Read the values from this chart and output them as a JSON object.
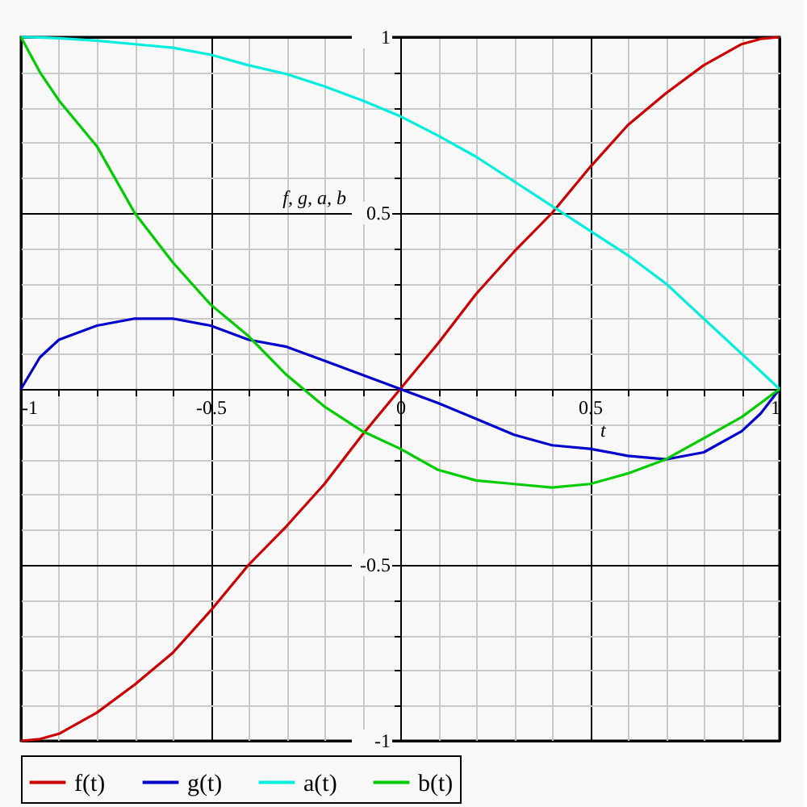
{
  "chart_data": {
    "type": "line",
    "xlabel": "t",
    "ylabel": "f, g, a, b",
    "x": [
      -1,
      -0.95,
      -0.9,
      -0.8,
      -0.7,
      -0.6,
      -0.5,
      -0.4,
      -0.3,
      -0.2,
      -0.1,
      0,
      0.1,
      0.2,
      0.3,
      0.4,
      0.5,
      0.6,
      0.7,
      0.8,
      0.9,
      0.95,
      1
    ],
    "series": [
      {
        "name": "f(t)",
        "color": "#cc0000",
        "values": [
          -1,
          -0.995,
          -0.98,
          -0.92,
          -0.84,
          -0.75,
          -0.63,
          -0.5,
          -0.39,
          -0.27,
          -0.13,
          0,
          0.13,
          0.27,
          0.39,
          0.5,
          0.63,
          0.75,
          0.84,
          0.92,
          0.98,
          0.995,
          1
        ]
      },
      {
        "name": "g(t)",
        "color": "#0000cc",
        "values": [
          0,
          0.09,
          0.14,
          0.18,
          0.2,
          0.2,
          0.18,
          0.14,
          0.12,
          0.08,
          0.04,
          0,
          -0.04,
          -0.085,
          -0.13,
          -0.16,
          -0.17,
          -0.19,
          -0.2,
          -0.18,
          -0.12,
          -0.07,
          0
        ]
      },
      {
        "name": "a(t)",
        "color": "#00eedd",
        "values": [
          1,
          0.999,
          0.997,
          0.99,
          0.98,
          0.97,
          0.95,
          0.92,
          0.895,
          0.86,
          0.82,
          0.775,
          0.72,
          0.66,
          0.59,
          0.52,
          0.45,
          0.38,
          0.3,
          0.2,
          0.1,
          0.05,
          0
        ]
      },
      {
        "name": "b(t)",
        "color": "#00cc00",
        "values": [
          1,
          0.9,
          0.82,
          0.69,
          0.5,
          0.36,
          0.24,
          0.15,
          0.04,
          -0.05,
          -0.12,
          -0.17,
          -0.23,
          -0.26,
          -0.27,
          -0.28,
          -0.27,
          -0.24,
          -0.2,
          -0.14,
          -0.08,
          -0.04,
          0
        ]
      }
    ],
    "xlim": [
      -1,
      1
    ],
    "ylim": [
      -1,
      1
    ],
    "xticks": [
      -1,
      {
        "value": -0.9,
        "label": null
      },
      {
        "value": -0.8,
        "label": null
      },
      {
        "value": -0.7,
        "label": null
      },
      {
        "value": -0.6,
        "label": null
      },
      -0.5,
      {
        "value": -0.4,
        "label": null
      },
      {
        "value": -0.3,
        "label": null
      },
      {
        "value": -0.2,
        "label": null
      },
      {
        "value": -0.1,
        "label": null
      },
      0,
      {
        "value": 0.1,
        "label": null
      },
      {
        "value": 0.2,
        "label": null
      },
      {
        "value": 0.3,
        "label": null
      },
      {
        "value": 0.4,
        "label": null
      },
      0.5,
      {
        "value": 0.6,
        "label": null
      },
      {
        "value": 0.7,
        "label": null
      },
      {
        "value": 0.8,
        "label": null
      },
      {
        "value": 0.9,
        "label": null
      },
      1
    ],
    "yticks": [
      -1,
      {
        "value": -0.9,
        "label": null
      },
      {
        "value": -0.8,
        "label": null
      },
      {
        "value": -0.7,
        "label": null
      },
      {
        "value": -0.6,
        "label": null
      },
      -0.5,
      {
        "value": -0.4,
        "label": null
      },
      {
        "value": -0.3,
        "label": null
      },
      {
        "value": -0.2,
        "label": null
      },
      {
        "value": -0.1,
        "label": null
      },
      {
        "value": 0,
        "label": null
      },
      {
        "value": 0.1,
        "label": null
      },
      {
        "value": 0.2,
        "label": null
      },
      {
        "value": 0.3,
        "label": null
      },
      {
        "value": 0.4,
        "label": null
      },
      0.5,
      {
        "value": 0.6,
        "label": null
      },
      {
        "value": 0.7,
        "label": null
      },
      {
        "value": 0.8,
        "label": null
      },
      {
        "value": 0.9,
        "label": null
      },
      1
    ],
    "grid": true,
    "legend": "bottom",
    "line_style": "solid",
    "marker": "none"
  }
}
